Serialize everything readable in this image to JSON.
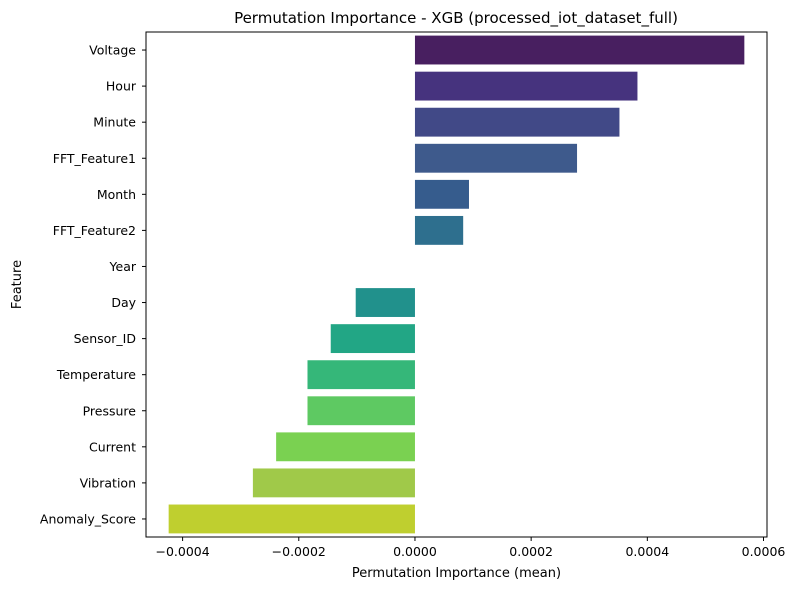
{
  "chart_data": {
    "type": "bar",
    "orientation": "horizontal",
    "title": "Permutation Importance - XGB (processed_iot_dataset_full)",
    "xlabel": "Permutation Importance (mean)",
    "ylabel": "Feature",
    "xlim": [
      -0.000463,
      0.000606
    ],
    "xticks": [
      -0.0004,
      -0.0002,
      0.0,
      0.0002,
      0.0004,
      0.0006
    ],
    "xtick_labels": [
      "−0.0004",
      "−0.0002",
      "0.0000",
      "0.0002",
      "0.0004",
      "0.0006"
    ],
    "grid": false,
    "palette": "viridis",
    "categories": [
      "Voltage",
      "Hour",
      "Minute",
      "FFT_Feature1",
      "Month",
      "FFT_Feature2",
      "Year",
      "Day",
      "Sensor_ID",
      "Temperature",
      "Pressure",
      "Current",
      "Vibration",
      "Anomaly_Score"
    ],
    "values": [
      0.000567,
      0.000383,
      0.000352,
      0.000279,
      9.3e-05,
      8.3e-05,
      0.0,
      -0.000102,
      -0.000145,
      -0.000185,
      -0.000185,
      -0.000239,
      -0.000279,
      -0.000424
    ],
    "colors": [
      "#481f60",
      "#46337e",
      "#414987",
      "#3e5a8c",
      "#365c8d",
      "#2e6f8e",
      "#277f8e",
      "#21918c",
      "#22a685",
      "#35b779",
      "#5ec962",
      "#7ad151",
      "#a0c949",
      "#bfcf2f"
    ]
  }
}
